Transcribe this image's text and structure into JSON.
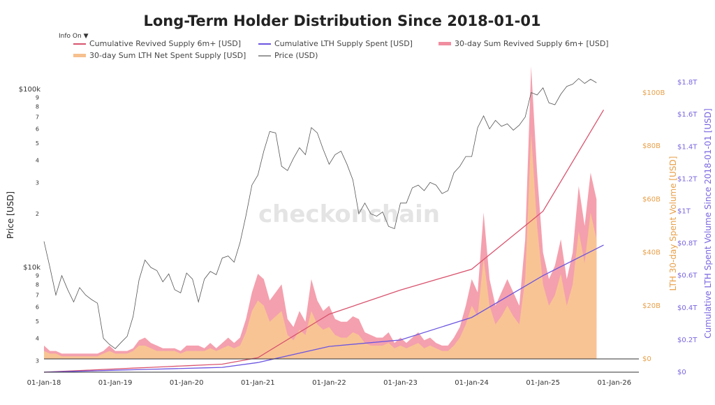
{
  "chart_data": {
    "type": "line",
    "title": "Long-Term Holder Distribution Since 2018-01-01",
    "info_toggle": "Info On",
    "legend": [
      {
        "name": "Cumulative Revived Supply 6m+ [USD]",
        "color": "#d9536e",
        "kind": "line"
      },
      {
        "name": "Cumulative LTH Supply Spent [USD]",
        "color": "#6b55e0",
        "kind": "line"
      },
      {
        "name": "30-day Sum Revived Supply 6m+ [USD]",
        "color": "#f08ea0",
        "kind": "area"
      },
      {
        "name": "30-day Sum LTH Net Spent Supply [USD]",
        "color": "#f6c08f",
        "kind": "area"
      },
      {
        "name": "Price (USD)",
        "color": "#999999",
        "kind": "line"
      }
    ],
    "x_ticks": [
      "01-Jan-18",
      "01-Jan-19",
      "01-Jan-20",
      "01-Jan-21",
      "01-Jan-22",
      "01-Jan-23",
      "01-Jan-24",
      "01-Jan-25",
      "01-Jan-26"
    ],
    "x_range": [
      "2018-01",
      "2026-01"
    ],
    "y_left": {
      "label": "Price [USD]",
      "scale": "log",
      "range": [
        3000,
        120000
      ],
      "ticks": [
        {
          "v": 100000,
          "t": "$100k"
        },
        {
          "v": 90000,
          "t": "9"
        },
        {
          "v": 80000,
          "t": "8"
        },
        {
          "v": 70000,
          "t": "7"
        },
        {
          "v": 60000,
          "t": "6"
        },
        {
          "v": 50000,
          "t": "5"
        },
        {
          "v": 40000,
          "t": "4"
        },
        {
          "v": 30000,
          "t": "3"
        },
        {
          "v": 20000,
          "t": "2"
        },
        {
          "v": 10000,
          "t": "$10k"
        },
        {
          "v": 9000,
          "t": "9"
        },
        {
          "v": 8000,
          "t": "8"
        },
        {
          "v": 7000,
          "t": "7"
        },
        {
          "v": 6000,
          "t": "6"
        },
        {
          "v": 5000,
          "t": "5"
        },
        {
          "v": 4000,
          "t": "4"
        },
        {
          "v": 3000,
          "t": "3"
        }
      ]
    },
    "y_right1": {
      "label": "LTH 30-day Spent Volume [USD]",
      "unit": "B",
      "color": "#e8a04a",
      "range": [
        0,
        100
      ],
      "ticks": [
        {
          "v": 0,
          "t": "$0"
        },
        {
          "v": 20,
          "t": "$20B"
        },
        {
          "v": 40,
          "t": "$40B"
        },
        {
          "v": 60,
          "t": "$60B"
        },
        {
          "v": 80,
          "t": "$80B"
        },
        {
          "v": 100,
          "t": "$100B"
        }
      ]
    },
    "y_right2": {
      "label": "Cumulative LTH Spent Volume Since 2018-01-01 [USD]",
      "unit": "T",
      "color": "#7a66e0",
      "range": [
        0,
        1.8
      ],
      "ticks": [
        {
          "v": 0,
          "t": "$0"
        },
        {
          "v": 0.2,
          "t": "$0.2T"
        },
        {
          "v": 0.4,
          "t": "$0.4T"
        },
        {
          "v": 0.6,
          "t": "$0.6T"
        },
        {
          "v": 0.8,
          "t": "$0.8T"
        },
        {
          "v": 1,
          "t": "$1T"
        },
        {
          "v": 1.2,
          "t": "$1.2T"
        },
        {
          "v": 1.4,
          "t": "$1.4T"
        },
        {
          "v": 1.6,
          "t": "$1.6T"
        },
        {
          "v": 1.8,
          "t": "$1.8T"
        }
      ]
    },
    "watermark": "checkonchain",
    "series": {
      "price": [
        14000,
        10000,
        7000,
        9000,
        7500,
        6400,
        7700,
        7000,
        6600,
        6300,
        4000,
        3700,
        3500,
        3800,
        4100,
        5300,
        8500,
        11000,
        10000,
        9600,
        8300,
        9200,
        7500,
        7200,
        9300,
        8600,
        6400,
        8600,
        9500,
        9100,
        11300,
        11600,
        10700,
        13800,
        19600,
        29000,
        33000,
        45000,
        58000,
        57000,
        37000,
        35000,
        41000,
        47000,
        43000,
        61000,
        57000,
        46000,
        38000,
        43000,
        45000,
        38000,
        31000,
        20000,
        23000,
        20000,
        19400,
        20500,
        17000,
        16500,
        23000,
        23000,
        28000,
        29000,
        27000,
        30000,
        29000,
        26000,
        27000,
        34000,
        37000,
        42000,
        42000,
        61000,
        71000,
        60000,
        67000,
        62000,
        64000,
        59000,
        63000,
        70000,
        96000,
        93000,
        102000,
        84000,
        82000,
        94000,
        104000,
        107000,
        115000,
        108000,
        114000,
        109000
      ],
      "revived_30d_B": [
        5,
        3,
        3,
        2,
        2,
        2,
        2,
        2,
        2,
        2,
        3,
        5,
        3,
        3,
        3,
        4,
        7,
        8,
        6,
        5,
        4,
        4,
        4,
        3,
        5,
        5,
        5,
        4,
        6,
        4,
        6,
        8,
        6,
        8,
        15,
        25,
        32,
        30,
        22,
        25,
        28,
        15,
        12,
        18,
        14,
        30,
        22,
        18,
        20,
        15,
        14,
        14,
        16,
        15,
        10,
        9,
        8,
        8,
        10,
        6,
        8,
        6,
        8,
        10,
        7,
        8,
        6,
        5,
        5,
        8,
        12,
        20,
        30,
        25,
        55,
        30,
        20,
        25,
        30,
        25,
        20,
        45,
        110,
        70,
        40,
        30,
        35,
        45,
        30,
        40,
        65,
        50,
        70,
        60
      ],
      "net_spent_30d_B": [
        3,
        2,
        2,
        1,
        1,
        1,
        1,
        1,
        1,
        1,
        2,
        3,
        2,
        2,
        2,
        3,
        5,
        5,
        4,
        3,
        3,
        3,
        3,
        2,
        3,
        3,
        3,
        3,
        4,
        3,
        4,
        5,
        4,
        5,
        10,
        18,
        22,
        20,
        14,
        16,
        18,
        9,
        7,
        11,
        9,
        18,
        13,
        11,
        12,
        9,
        8,
        8,
        10,
        9,
        6,
        5,
        5,
        5,
        6,
        4,
        5,
        4,
        5,
        6,
        4,
        5,
        4,
        3,
        3,
        5,
        8,
        13,
        20,
        16,
        38,
        20,
        13,
        16,
        20,
        16,
        13,
        30,
        85,
        50,
        28,
        20,
        24,
        32,
        20,
        28,
        48,
        36,
        55,
        45
      ],
      "cum_revived_T": [
        0,
        0.005,
        0.01,
        0.015,
        0.02,
        0.025,
        0.03,
        0.035,
        0.04,
        0.045,
        0.05,
        0.09,
        0.36,
        0.51,
        0.64,
        1.0,
        1.63
      ],
      "cum_lth_T": [
        0,
        0.003,
        0.006,
        0.009,
        0.012,
        0.015,
        0.018,
        0.021,
        0.024,
        0.027,
        0.03,
        0.06,
        0.16,
        0.2,
        0.34,
        0.6,
        0.79
      ],
      "cum_x_years": [
        2018,
        2018.25,
        2018.5,
        2018.75,
        2019,
        2019.25,
        2019.5,
        2019.75,
        2020,
        2020.25,
        2020.5,
        2021,
        2022,
        2023,
        2024,
        2025,
        2025.85
      ]
    }
  }
}
